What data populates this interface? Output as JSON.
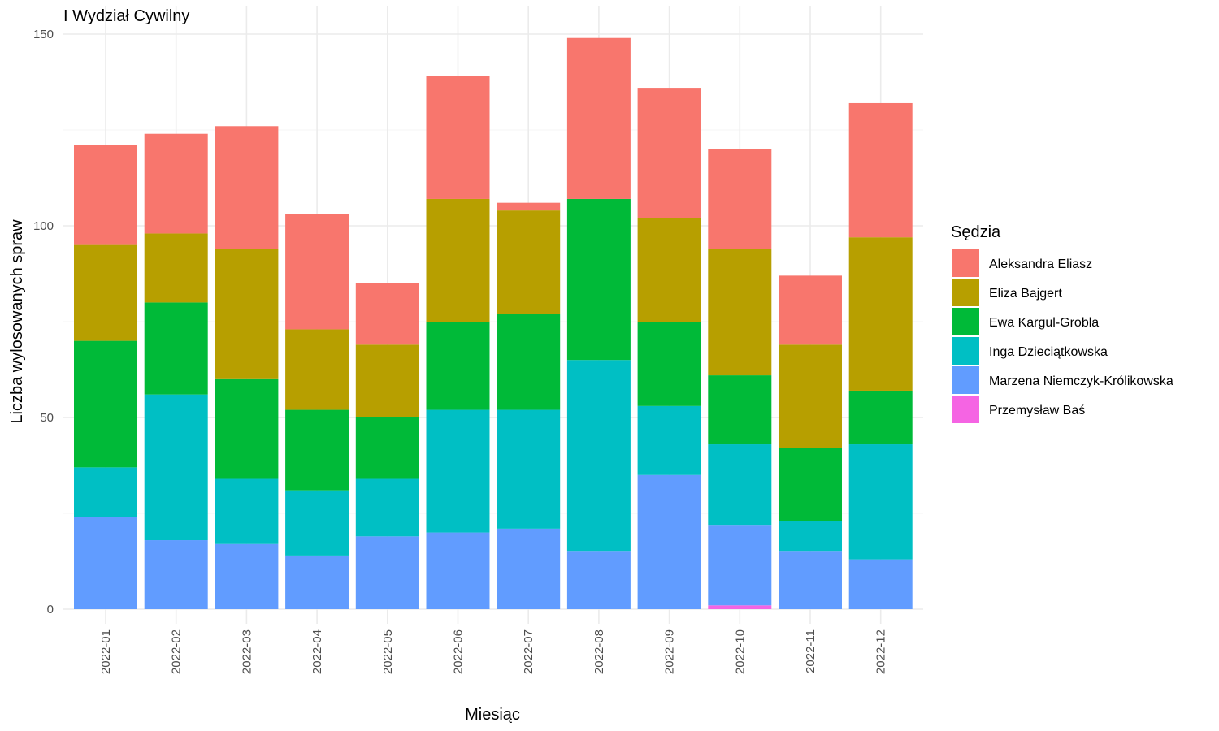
{
  "chart_data": {
    "type": "bar",
    "stacked": true,
    "title": "I Wydział Cywilny",
    "xlabel": "Miesiąc",
    "ylabel": "Liczba wylosowanych spraw",
    "ylim": [
      0,
      150
    ],
    "yticks": [
      0,
      50,
      100,
      150
    ],
    "grid": true,
    "legend_title": "Sędzia",
    "legend_position": "right",
    "categories": [
      "2022-01",
      "2022-02",
      "2022-03",
      "2022-04",
      "2022-05",
      "2022-06",
      "2022-07",
      "2022-08",
      "2022-09",
      "2022-10",
      "2022-11",
      "2022-12"
    ],
    "series": [
      {
        "name": "Aleksandra Eliasz",
        "color": "#F8766D",
        "values": [
          26,
          26,
          32,
          30,
          16,
          32,
          2,
          42,
          34,
          26,
          18,
          35
        ]
      },
      {
        "name": "Eliza Bajgert",
        "color": "#B79F00",
        "values": [
          25,
          18,
          34,
          21,
          19,
          32,
          27,
          0,
          27,
          33,
          27,
          40
        ]
      },
      {
        "name": "Ewa Kargul-Grobla",
        "color": "#00BA38",
        "values": [
          33,
          24,
          26,
          21,
          16,
          23,
          25,
          42,
          22,
          18,
          19,
          14
        ]
      },
      {
        "name": "Inga Dzieciątkowska",
        "color": "#00BFC4",
        "values": [
          13,
          38,
          17,
          17,
          15,
          32,
          31,
          50,
          18,
          21,
          8,
          30
        ]
      },
      {
        "name": "Marzena Niemczyk-Królikowska",
        "color": "#619CFF",
        "values": [
          24,
          18,
          17,
          14,
          19,
          20,
          21,
          15,
          35,
          21,
          15,
          13
        ]
      },
      {
        "name": "Przemysław Baś",
        "color": "#F564E3",
        "values": [
          0,
          0,
          0,
          0,
          0,
          0,
          0,
          0,
          0,
          1,
          0,
          0
        ]
      }
    ]
  }
}
